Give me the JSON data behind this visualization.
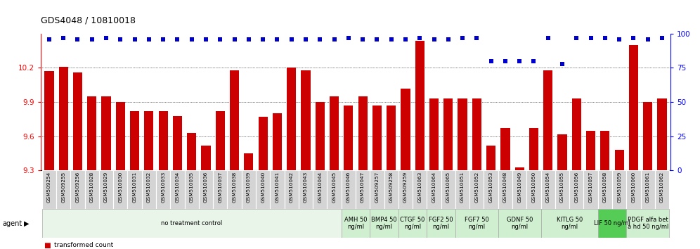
{
  "title": "GDS4048 / 10810018",
  "bar_color": "#cc0000",
  "dot_color": "#0000cc",
  "ylim_left": [
    9.3,
    10.5
  ],
  "ylim_right": [
    0,
    100
  ],
  "yticks_left": [
    9.3,
    9.6,
    9.9,
    10.2
  ],
  "yticks_right": [
    0,
    25,
    50,
    75,
    100
  ],
  "samples": [
    "GSM509254",
    "GSM509255",
    "GSM509256",
    "GSM510028",
    "GSM510029",
    "GSM510030",
    "GSM510031",
    "GSM510032",
    "GSM510033",
    "GSM510034",
    "GSM510035",
    "GSM510036",
    "GSM510037",
    "GSM510038",
    "GSM510039",
    "GSM510040",
    "GSM510041",
    "GSM510042",
    "GSM510043",
    "GSM510044",
    "GSM510045",
    "GSM510046",
    "GSM510047",
    "GSM509257",
    "GSM509258",
    "GSM509259",
    "GSM510063",
    "GSM510064",
    "GSM510065",
    "GSM510051",
    "GSM510052",
    "GSM510053",
    "GSM510048",
    "GSM510049",
    "GSM510050",
    "GSM510054",
    "GSM510055",
    "GSM510056",
    "GSM510057",
    "GSM510058",
    "GSM510059",
    "GSM510060",
    "GSM510061",
    "GSM510062"
  ],
  "bar_values": [
    10.17,
    10.21,
    10.16,
    9.95,
    9.95,
    9.9,
    9.82,
    9.82,
    9.82,
    9.78,
    9.63,
    9.52,
    9.82,
    10.18,
    9.45,
    9.77,
    9.8,
    10.2,
    10.18,
    9.9,
    9.95,
    9.87,
    9.95,
    9.87,
    9.87,
    10.02,
    10.44,
    9.93,
    9.93,
    9.93,
    9.93,
    9.52,
    9.67,
    9.33,
    9.67,
    10.18,
    9.62,
    9.93,
    9.65,
    9.65,
    9.48,
    10.4,
    9.9,
    9.93
  ],
  "dot_values": [
    96,
    97,
    96,
    96,
    97,
    96,
    96,
    96,
    96,
    96,
    96,
    96,
    96,
    96,
    96,
    96,
    96,
    96,
    96,
    96,
    96,
    97,
    96,
    96,
    96,
    96,
    97,
    96,
    96,
    97,
    97,
    80,
    80,
    80,
    80,
    97,
    78,
    97,
    97,
    97,
    96,
    97,
    96,
    97
  ],
  "agent_groups": [
    {
      "label": "no treatment control",
      "start": 0,
      "end": 20,
      "color": "#eaf5ea",
      "border": "#aaaaaa"
    },
    {
      "label": "AMH 50\nng/ml",
      "start": 21,
      "end": 22,
      "color": "#d0efd0",
      "border": "#aaaaaa"
    },
    {
      "label": "BMP4 50\nng/ml",
      "start": 23,
      "end": 24,
      "color": "#d0efd0",
      "border": "#aaaaaa"
    },
    {
      "label": "CTGF 50\nng/ml",
      "start": 25,
      "end": 26,
      "color": "#d0efd0",
      "border": "#aaaaaa"
    },
    {
      "label": "FGF2 50\nng/ml",
      "start": 27,
      "end": 28,
      "color": "#d0efd0",
      "border": "#aaaaaa"
    },
    {
      "label": "FGF7 50\nng/ml",
      "start": 29,
      "end": 31,
      "color": "#d0efd0",
      "border": "#aaaaaa"
    },
    {
      "label": "GDNF 50\nng/ml",
      "start": 32,
      "end": 34,
      "color": "#d0efd0",
      "border": "#aaaaaa"
    },
    {
      "label": "KITLG 50\nng/ml",
      "start": 35,
      "end": 38,
      "color": "#d0efd0",
      "border": "#aaaaaa"
    },
    {
      "label": "LIF 50 ng/ml",
      "start": 39,
      "end": 40,
      "color": "#55cc55",
      "border": "#aaaaaa"
    },
    {
      "label": "PDGF alfa bet\na hd 50 ng/ml",
      "start": 41,
      "end": 43,
      "color": "#d0efd0",
      "border": "#aaaaaa"
    }
  ]
}
